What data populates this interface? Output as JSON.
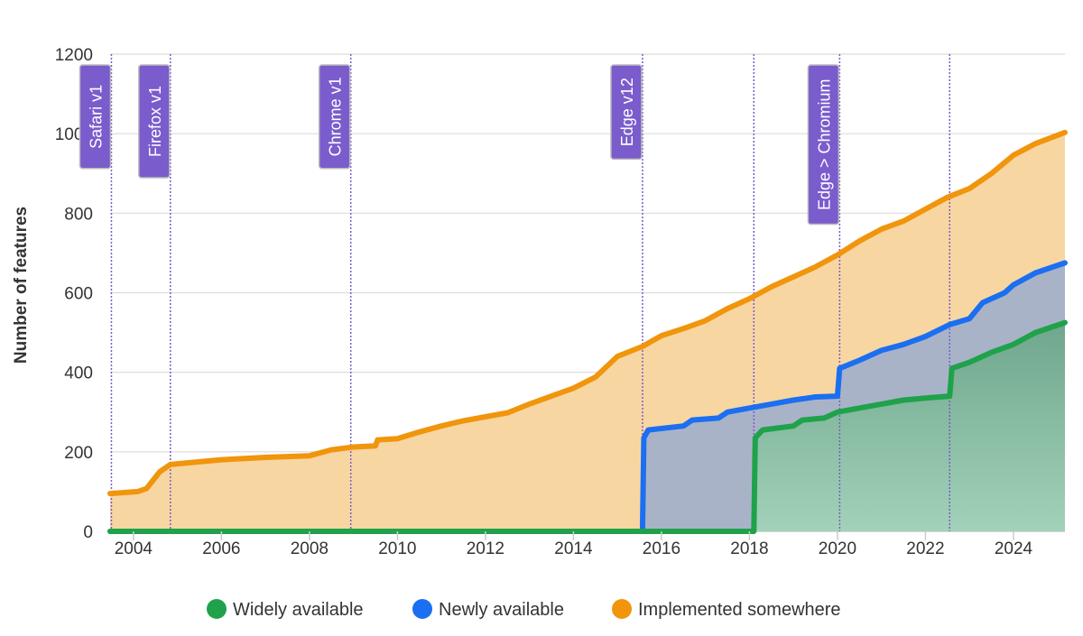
{
  "chart_data": {
    "type": "area",
    "title": "",
    "xlabel": "",
    "ylabel": "Number of features",
    "xlim": [
      2003.47,
      2025.17
    ],
    "ylim": [
      0,
      1200
    ],
    "yticks": [
      0,
      200,
      400,
      600,
      800,
      1000,
      1200
    ],
    "xticks": [
      2004,
      2006,
      2008,
      2010,
      2012,
      2014,
      2016,
      2018,
      2020,
      2022,
      2024
    ],
    "grid": true,
    "legend_position": "bottom-center",
    "series": [
      {
        "name": "Implemented somewhere",
        "color": "#f0950c",
        "fill": "#f8d6a2",
        "points": [
          [
            2003.47,
            95
          ],
          [
            2004.1,
            100
          ],
          [
            2004.3,
            108
          ],
          [
            2004.6,
            150
          ],
          [
            2004.84,
            168
          ],
          [
            2005.5,
            175
          ],
          [
            2006,
            180
          ],
          [
            2007,
            186
          ],
          [
            2008,
            190
          ],
          [
            2008.5,
            205
          ],
          [
            2009,
            212
          ],
          [
            2009.5,
            215
          ],
          [
            2009.55,
            230
          ],
          [
            2010,
            233
          ],
          [
            2010.5,
            250
          ],
          [
            2011,
            265
          ],
          [
            2011.5,
            278
          ],
          [
            2012,
            288
          ],
          [
            2012.5,
            298
          ],
          [
            2013,
            320
          ],
          [
            2013.5,
            340
          ],
          [
            2014,
            360
          ],
          [
            2014.5,
            388
          ],
          [
            2015,
            440
          ],
          [
            2015.57,
            465
          ],
          [
            2016,
            492
          ],
          [
            2016.5,
            510
          ],
          [
            2017,
            530
          ],
          [
            2017.5,
            560
          ],
          [
            2018,
            585
          ],
          [
            2018.5,
            615
          ],
          [
            2019,
            640
          ],
          [
            2019.5,
            665
          ],
          [
            2020,
            695
          ],
          [
            2020.5,
            730
          ],
          [
            2021,
            760
          ],
          [
            2021.5,
            780
          ],
          [
            2022,
            810
          ],
          [
            2022.5,
            840
          ],
          [
            2023,
            862
          ],
          [
            2023.5,
            900
          ],
          [
            2024,
            946
          ],
          [
            2024.5,
            975
          ],
          [
            2025.17,
            1003
          ]
        ]
      },
      {
        "name": "Newly available",
        "color": "#1b6ff0",
        "fill": "#a9b3c8",
        "points": [
          [
            2003.47,
            0
          ],
          [
            2015.57,
            0
          ],
          [
            2015.6,
            235
          ],
          [
            2015.7,
            255
          ],
          [
            2016.5,
            265
          ],
          [
            2016.7,
            280
          ],
          [
            2017.3,
            285
          ],
          [
            2017.5,
            300
          ],
          [
            2018,
            310
          ],
          [
            2018.5,
            320
          ],
          [
            2019,
            330
          ],
          [
            2019.5,
            338
          ],
          [
            2020,
            340
          ],
          [
            2020.05,
            410
          ],
          [
            2020.5,
            430
          ],
          [
            2021,
            455
          ],
          [
            2021.5,
            470
          ],
          [
            2022,
            490
          ],
          [
            2022.55,
            520
          ],
          [
            2023,
            535
          ],
          [
            2023.3,
            575
          ],
          [
            2023.8,
            600
          ],
          [
            2024,
            620
          ],
          [
            2024.5,
            650
          ],
          [
            2025.17,
            675
          ]
        ]
      },
      {
        "name": "Widely available",
        "color": "#1fa24a",
        "fill": "#74aa93",
        "points": [
          [
            2003.47,
            0
          ],
          [
            2018.1,
            0
          ],
          [
            2018.13,
            235
          ],
          [
            2018.3,
            255
          ],
          [
            2019,
            265
          ],
          [
            2019.2,
            280
          ],
          [
            2019.7,
            285
          ],
          [
            2020,
            300
          ],
          [
            2020.5,
            310
          ],
          [
            2021,
            320
          ],
          [
            2021.5,
            330
          ],
          [
            2022,
            335
          ],
          [
            2022.55,
            340
          ],
          [
            2022.6,
            410
          ],
          [
            2023,
            425
          ],
          [
            2023.5,
            450
          ],
          [
            2024,
            470
          ],
          [
            2024.5,
            500
          ],
          [
            2025.17,
            525
          ]
        ]
      }
    ],
    "legend": [
      "Widely available",
      "Newly available",
      "Implemented somewhere"
    ],
    "annotations": [
      {
        "x": 2003.5,
        "label": "Safari v1"
      },
      {
        "x": 2004.84,
        "label": "Firefox v1"
      },
      {
        "x": 2008.94,
        "label": "Chrome v1"
      },
      {
        "x": 2015.57,
        "label": "Edge v12"
      },
      {
        "x": 2018.1,
        "label": ""
      },
      {
        "x": 2020.05,
        "label": "Edge > Chromium"
      },
      {
        "x": 2022.55,
        "label": ""
      }
    ],
    "annotation_color": "#7a5ccc"
  }
}
